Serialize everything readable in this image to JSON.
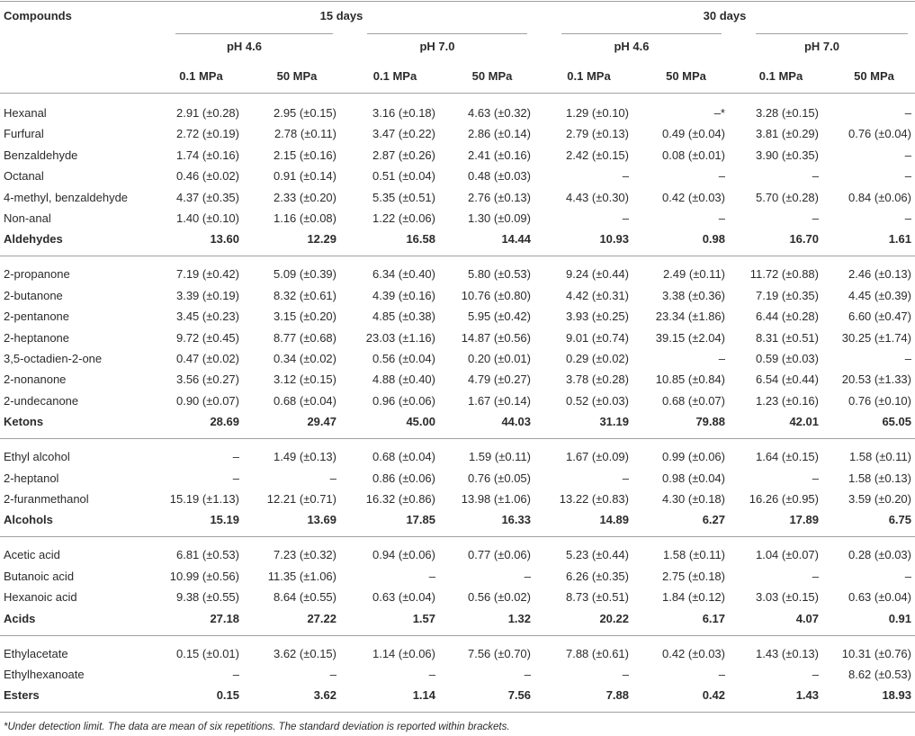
{
  "header": {
    "title": "Compounds",
    "periods": [
      "15 days",
      "30 days"
    ],
    "ph": [
      "pH 4.6",
      "pH 7.0",
      "pH 4.6",
      "pH 7.0"
    ],
    "pressure": [
      "0.1 MPa",
      "50 MPa",
      "0.1 MPa",
      "50 MPa",
      "0.1 MPa",
      "50 MPa",
      "0.1 MPa",
      "50 MPa"
    ]
  },
  "groups": [
    {
      "rows": [
        [
          "Hexanal",
          "2.91 (±0.28)",
          "2.95 (±0.15)",
          "3.16 (±0.18)",
          "4.63 (±0.32)",
          "1.29 (±0.10)",
          "–*",
          "3.28 (±0.15)",
          "–"
        ],
        [
          "Furfural",
          "2.72 (±0.19)",
          "2.78 (±0.11)",
          "3.47 (±0.22)",
          "2.86 (±0.14)",
          "2.79 (±0.13)",
          "0.49 (±0.04)",
          "3.81 (±0.29)",
          "0.76 (±0.04)"
        ],
        [
          "Benzaldehyde",
          "1.74 (±0.16)",
          "2.15 (±0.16)",
          "2.87 (±0.26)",
          "2.41 (±0.16)",
          "2.42 (±0.15)",
          "0.08 (±0.01)",
          "3.90 (±0.35)",
          "–"
        ],
        [
          "Octanal",
          "0.46 (±0.02)",
          "0.91 (±0.14)",
          "0.51 (±0.04)",
          "0.48 (±0.03)",
          "–",
          "–",
          "–",
          "–"
        ],
        [
          "4-methyl, benzaldehyde",
          "4.37 (±0.35)",
          "2.33 (±0.20)",
          "5.35 (±0.51)",
          "2.76 (±0.13)",
          "4.43 (±0.30)",
          "0.42 (±0.03)",
          "5.70 (±0.28)",
          "0.84 (±0.06)"
        ],
        [
          "Non-anal",
          "1.40 (±0.10)",
          "1.16 (±0.08)",
          "1.22 (±0.06)",
          "1.30 (±0.09)",
          "–",
          "–",
          "–",
          "–"
        ]
      ],
      "total": [
        "Aldehydes",
        "13.60",
        "12.29",
        "16.58",
        "14.44",
        "10.93",
        "0.98",
        "16.70",
        "1.61"
      ]
    },
    {
      "rows": [
        [
          "2-propanone",
          "7.19 (±0.42)",
          "5.09 (±0.39)",
          "6.34 (±0.40)",
          "5.80 (±0.53)",
          "9.24 (±0.44)",
          "2.49 (±0.11)",
          "11.72 (±0.88)",
          "2.46 (±0.13)"
        ],
        [
          "2-butanone",
          "3.39 (±0.19)",
          "8.32 (±0.61)",
          "4.39 (±0.16)",
          "10.76 (±0.80)",
          "4.42 (±0.31)",
          "3.38 (±0.36)",
          "7.19 (±0.35)",
          "4.45 (±0.39)"
        ],
        [
          "2-pentanone",
          "3.45 (±0.23)",
          "3.15 (±0.20)",
          "4.85 (±0.38)",
          "5.95 (±0.42)",
          "3.93 (±0.25)",
          "23.34 (±1.86)",
          "6.44 (±0.28)",
          "6.60 (±0.47)"
        ],
        [
          "2-heptanone",
          "9.72 (±0.45)",
          "8.77 (±0.68)",
          "23.03 (±1.16)",
          "14.87 (±0.56)",
          "9.01 (±0.74)",
          "39.15 (±2.04)",
          "8.31 (±0.51)",
          "30.25 (±1.74)"
        ],
        [
          "3,5-octadien-2-one",
          "0.47 (±0.02)",
          "0.34 (±0.02)",
          "0.56 (±0.04)",
          "0.20 (±0.01)",
          "0.29 (±0.02)",
          "–",
          "0.59 (±0.03)",
          "–"
        ],
        [
          "2-nonanone",
          "3.56 (±0.27)",
          "3.12 (±0.15)",
          "4.88 (±0.40)",
          "4.79 (±0.27)",
          "3.78 (±0.28)",
          "10.85 (±0.84)",
          "6.54 (±0.44)",
          "20.53 (±1.33)"
        ],
        [
          "2-undecanone",
          "0.90 (±0.07)",
          "0.68 (±0.04)",
          "0.96 (±0.06)",
          "1.67 (±0.14)",
          "0.52 (±0.03)",
          "0.68 (±0.07)",
          "1.23 (±0.16)",
          "0.76 (±0.10)"
        ]
      ],
      "total": [
        "Ketons",
        "28.69",
        "29.47",
        "45.00",
        "44.03",
        "31.19",
        "79.88",
        "42.01",
        "65.05"
      ]
    },
    {
      "rows": [
        [
          "Ethyl alcohol",
          "–",
          "1.49 (±0.13)",
          "0.68 (±0.04)",
          "1.59 (±0.11)",
          "1.67 (±0.09)",
          "0.99 (±0.06)",
          "1.64 (±0.15)",
          "1.58 (±0.11)"
        ],
        [
          "2-heptanol",
          "–",
          "–",
          "0.86 (±0.06)",
          "0.76 (±0.05)",
          "–",
          "0.98 (±0.04)",
          "–",
          "1.58 (±0.13)"
        ],
        [
          "2-furanmethanol",
          "15.19 (±1.13)",
          "12.21 (±0.71)",
          "16.32 (±0.86)",
          "13.98 (±1.06)",
          "13.22 (±0.83)",
          "4.30 (±0.18)",
          "16.26 (±0.95)",
          "3.59 (±0.20)"
        ]
      ],
      "total": [
        "Alcohols",
        "15.19",
        "13.69",
        "17.85",
        "16.33",
        "14.89",
        "6.27",
        "17.89",
        "6.75"
      ]
    },
    {
      "rows": [
        [
          "Acetic acid",
          "6.81 (±0.53)",
          "7.23 (±0.32)",
          "0.94 (±0.06)",
          "0.77 (±0.06)",
          "5.23 (±0.44)",
          "1.58 (±0.11)",
          "1.04 (±0.07)",
          "0.28 (±0.03)"
        ],
        [
          "Butanoic acid",
          "10.99 (±0.56)",
          "11.35 (±1.06)",
          "–",
          "–",
          "6.26 (±0.35)",
          "2.75 (±0.18)",
          "–",
          "–"
        ],
        [
          "Hexanoic acid",
          "9.38 (±0.55)",
          "8.64 (±0.55)",
          "0.63 (±0.04)",
          "0.56 (±0.02)",
          "8.73 (±0.51)",
          "1.84 (±0.12)",
          "3.03 (±0.15)",
          "0.63 (±0.04)"
        ]
      ],
      "total": [
        "Acids",
        "27.18",
        "27.22",
        "1.57",
        "1.32",
        "20.22",
        "6.17",
        "4.07",
        "0.91"
      ]
    },
    {
      "rows": [
        [
          "Ethylacetate",
          "0.15 (±0.01)",
          "3.62 (±0.15)",
          "1.14 (±0.06)",
          "7.56 (±0.70)",
          "7.88 (±0.61)",
          "0.42 (±0.03)",
          "1.43 (±0.13)",
          "10.31 (±0.76)"
        ],
        [
          "Ethylhexanoate",
          "–",
          "–",
          "–",
          "–",
          "–",
          "–",
          "–",
          "8.62 (±0.53)"
        ]
      ],
      "total": [
        "Esters",
        "0.15",
        "3.62",
        "1.14",
        "7.56",
        "7.88",
        "0.42",
        "1.43",
        "18.93"
      ]
    }
  ],
  "footnote": "*Under detection limit. The data are mean of six repetitions. The standard deviation is reported within brackets."
}
